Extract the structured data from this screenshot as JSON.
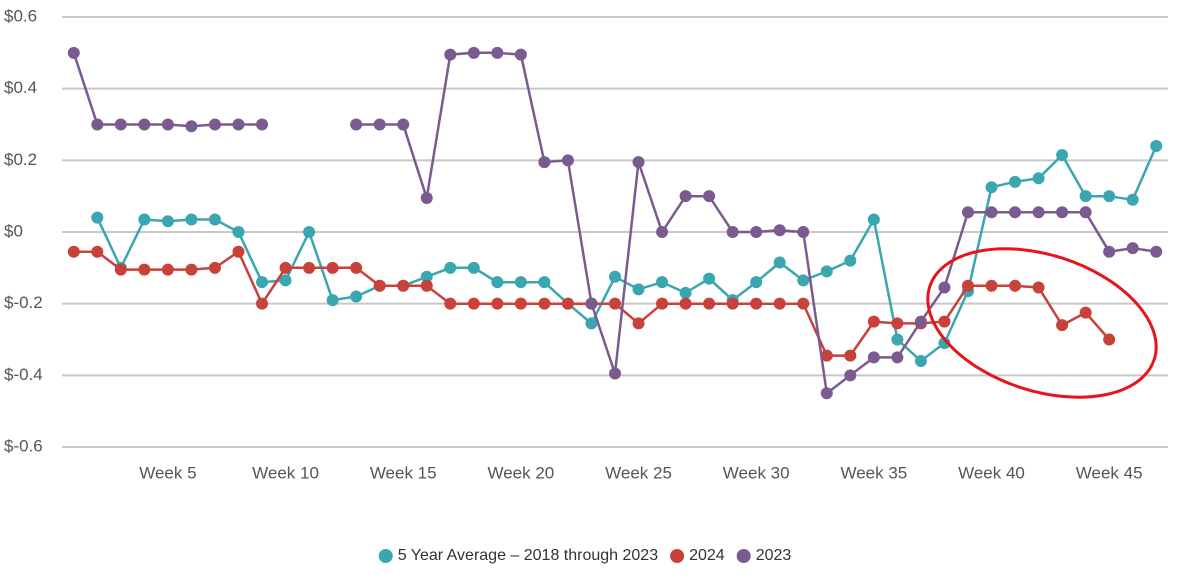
{
  "chart_data": {
    "type": "line",
    "categories": [
      null,
      null,
      null,
      null,
      "Week 5",
      null,
      null,
      null,
      null,
      "Week 10",
      null,
      null,
      null,
      null,
      "Week 15",
      null,
      null,
      null,
      null,
      "Week 20",
      null,
      null,
      null,
      null,
      "Week 25",
      null,
      null,
      null,
      null,
      "Week 30",
      null,
      null,
      null,
      null,
      "Week 35",
      null,
      null,
      null,
      null,
      "Week 40",
      null,
      null,
      null,
      null,
      "Week 45",
      null,
      null
    ],
    "series": [
      {
        "name": "5 Year Average – 2018 through 2023",
        "color": "#3aa6b0",
        "values": [
          null,
          0.04,
          -0.1,
          0.035,
          0.03,
          0.035,
          0.035,
          0,
          -0.14,
          -0.135,
          0,
          -0.19,
          -0.18,
          -0.15,
          -0.15,
          -0.125,
          -0.1,
          -0.1,
          -0.14,
          -0.14,
          -0.14,
          -0.2,
          -0.255,
          -0.125,
          -0.16,
          -0.14,
          -0.17,
          -0.13,
          -0.19,
          -0.14,
          -0.085,
          -0.135,
          -0.11,
          -0.08,
          0.035,
          -0.3,
          -0.36,
          -0.31,
          -0.165,
          0.125,
          0.14,
          0.15,
          0.215,
          0.1,
          0.1,
          0.09,
          0.24
        ]
      },
      {
        "name": "2024",
        "color": "#c8413b",
        "values": [
          -0.055,
          -0.055,
          -0.105,
          -0.105,
          -0.105,
          -0.105,
          -0.1,
          -0.055,
          -0.2,
          -0.1,
          -0.1,
          -0.1,
          -0.1,
          -0.15,
          -0.15,
          -0.15,
          -0.2,
          -0.2,
          -0.2,
          -0.2,
          -0.2,
          -0.2,
          -0.2,
          -0.2,
          -0.255,
          -0.2,
          -0.2,
          -0.2,
          -0.2,
          -0.2,
          -0.2,
          -0.2,
          -0.345,
          -0.345,
          -0.25,
          -0.255,
          -0.255,
          -0.25,
          -0.15,
          -0.15,
          -0.15,
          -0.155,
          -0.26,
          -0.225,
          -0.3,
          null,
          null
        ]
      },
      {
        "name": "2023",
        "color": "#7b5a8f",
        "values": [
          0.5,
          0.3,
          0.3,
          0.3,
          0.3,
          0.295,
          0.3,
          0.3,
          0.3,
          null,
          null,
          null,
          0.3,
          0.3,
          0.3,
          0.095,
          0.495,
          0.5,
          0.5,
          0.495,
          0.195,
          0.2,
          -0.2,
          -0.395,
          0.195,
          0,
          0.1,
          0.1,
          0,
          0,
          0.005,
          0,
          -0.45,
          -0.4,
          -0.35,
          -0.35,
          -0.25,
          -0.155,
          0.055,
          0.055,
          0.055,
          0.055,
          0.055,
          0.055,
          -0.055,
          -0.045,
          -0.055
        ]
      }
    ],
    "ylim": [
      -0.6,
      0.6
    ],
    "yticks": [
      {
        "value": 0.6,
        "label": "$0.6"
      },
      {
        "value": 0.4,
        "label": "$0.4"
      },
      {
        "value": 0.2,
        "label": "$0.2"
      },
      {
        "value": 0,
        "label": "$0"
      },
      {
        "value": -0.2,
        "label": "$-0.2"
      },
      {
        "value": -0.4,
        "label": "$-0.4"
      },
      {
        "value": -0.6,
        "label": "$-0.6"
      }
    ],
    "grid": true,
    "legend": "bottom"
  }
}
